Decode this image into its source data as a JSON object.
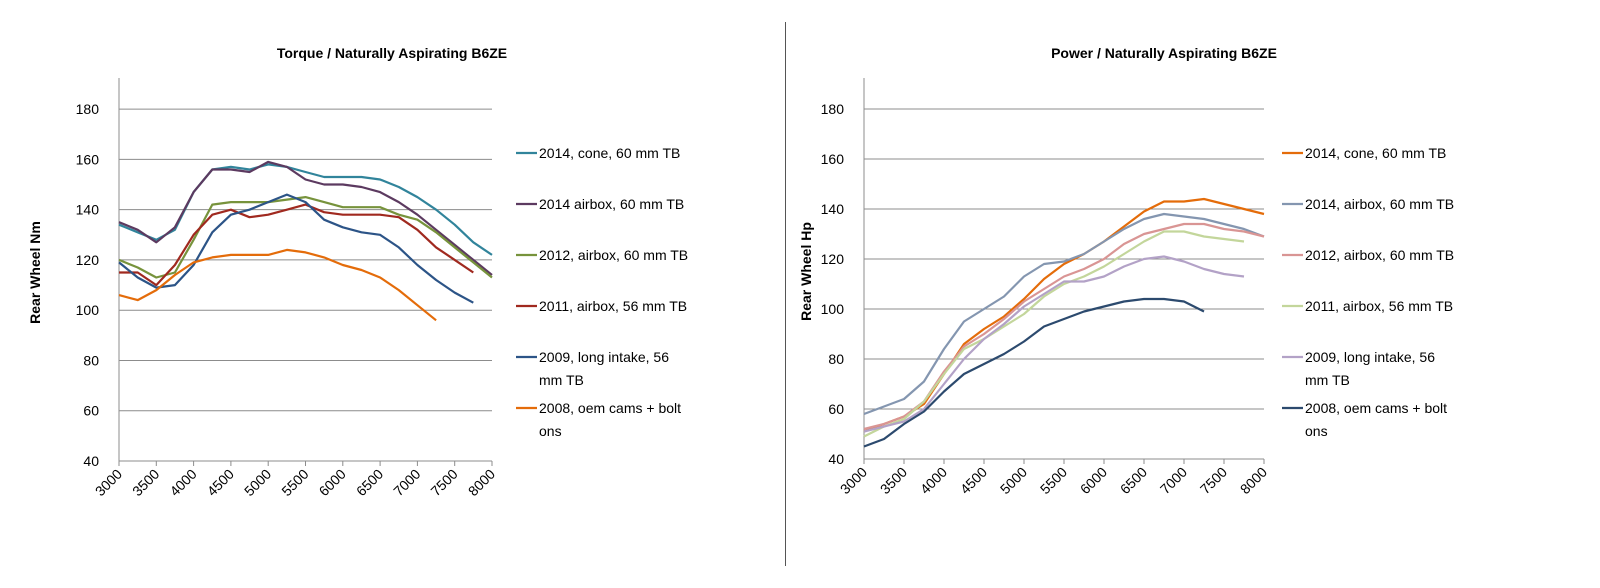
{
  "chart_data": [
    {
      "type": "line",
      "title": "Torque / Naturally Aspirating B6ZE",
      "xlabel": "",
      "ylabel": "Rear Wheel Nm",
      "ylim": [
        40,
        190
      ],
      "yticks": [
        40,
        60,
        80,
        100,
        120,
        140,
        160,
        180
      ],
      "xlim": [
        3000,
        8000
      ],
      "xticks": [
        3000,
        3500,
        4000,
        4500,
        5000,
        5500,
        6000,
        6500,
        7000,
        7500,
        8000
      ],
      "grid": true,
      "legend_position": "right",
      "series": [
        {
          "name": "2014, cone, 60 mm TB",
          "color": "#31849b",
          "x": [
            3000,
            3250,
            3500,
            3750,
            4000,
            4250,
            4500,
            4750,
            5000,
            5250,
            5500,
            5750,
            6000,
            6250,
            6500,
            6750,
            7000,
            7250,
            7500,
            7750,
            8000
          ],
          "y": [
            134,
            131,
            128,
            132,
            147,
            156,
            157,
            156,
            158,
            157,
            155,
            153,
            153,
            153,
            152,
            149,
            145,
            140,
            134,
            127,
            122
          ]
        },
        {
          "name": "2014 airbox, 60 mm TB",
          "color": "#5c3a60",
          "x": [
            3000,
            3250,
            3500,
            3750,
            4000,
            4250,
            4500,
            4750,
            5000,
            5250,
            5500,
            5750,
            6000,
            6250,
            6500,
            6750,
            7000,
            7250,
            7500,
            7750,
            8000
          ],
          "y": [
            135,
            132,
            127,
            133,
            147,
            156,
            156,
            155,
            159,
            157,
            152,
            150,
            150,
            149,
            147,
            143,
            138,
            132,
            126,
            120,
            114
          ]
        },
        {
          "name": "2012, airbox, 60 mm TB",
          "color": "#77933c",
          "x": [
            3000,
            3250,
            3500,
            3750,
            4000,
            4250,
            4500,
            4750,
            5000,
            5250,
            5500,
            5750,
            6000,
            6250,
            6500,
            6750,
            7000,
            7250,
            7500,
            7750,
            8000
          ],
          "y": [
            120,
            117,
            113,
            115,
            128,
            142,
            143,
            143,
            143,
            144,
            145,
            143,
            141,
            141,
            141,
            138,
            136,
            131,
            125,
            119,
            113
          ]
        },
        {
          "name": "2011, airbox, 56 mm TB",
          "color": "#a0291f",
          "x": [
            3000,
            3250,
            3500,
            3750,
            4000,
            4250,
            4500,
            4750,
            5000,
            5250,
            5500,
            5750,
            6000,
            6250,
            6500,
            6750,
            7000,
            7250,
            7500,
            7750
          ],
          "y": [
            115,
            115,
            110,
            118,
            130,
            138,
            140,
            137,
            138,
            140,
            142,
            139,
            138,
            138,
            138,
            137,
            132,
            125,
            120,
            115
          ]
        },
        {
          "name": "2009, long intake, 56 mm TB",
          "color": "#2c5487",
          "x": [
            3000,
            3250,
            3500,
            3750,
            4000,
            4250,
            4500,
            4750,
            5000,
            5250,
            5500,
            5750,
            6000,
            6250,
            6500,
            6750,
            7000,
            7250,
            7500,
            7750
          ],
          "y": [
            119,
            113,
            109,
            110,
            118,
            131,
            138,
            140,
            143,
            146,
            143,
            136,
            133,
            131,
            130,
            125,
            118,
            112,
            107,
            103
          ]
        },
        {
          "name": "2008, oem cams + bolt ons",
          "color": "#e46c0a",
          "x": [
            3000,
            3250,
            3500,
            3750,
            4000,
            4250,
            4500,
            4750,
            5000,
            5250,
            5500,
            5750,
            6000,
            6250,
            6500,
            6750,
            7000,
            7250
          ],
          "y": [
            106,
            104,
            108,
            114,
            119,
            121,
            122,
            122,
            122,
            124,
            123,
            121,
            118,
            116,
            113,
            108,
            102,
            96
          ]
        }
      ]
    },
    {
      "type": "line",
      "title": "Power / Naturally Aspirating B6ZE",
      "xlabel": "",
      "ylabel": "Rear Wheel Hp",
      "ylim": [
        40,
        190
      ],
      "yticks": [
        40,
        60,
        80,
        100,
        120,
        140,
        160,
        180
      ],
      "xlim": [
        3000,
        8000
      ],
      "xticks": [
        3000,
        3500,
        4000,
        4500,
        5000,
        5500,
        6000,
        6500,
        7000,
        7500,
        8000
      ],
      "grid": true,
      "legend_position": "right",
      "series": [
        {
          "name": "2014, cone, 60 mm TB",
          "color": "#e46c0a",
          "x": [
            3000,
            3250,
            3500,
            3750,
            4000,
            4250,
            4500,
            4750,
            5000,
            5250,
            5500,
            5750,
            6000,
            6250,
            6500,
            6750,
            7000,
            7250,
            7500,
            7750,
            8000
          ],
          "y": [
            51,
            54,
            57,
            62,
            74,
            86,
            92,
            97,
            104,
            112,
            118,
            122,
            127,
            133,
            139,
            143,
            143,
            144,
            142,
            140,
            138
          ]
        },
        {
          "name": "2014, airbox, 60 mm TB",
          "color": "#8496b0",
          "x": [
            3000,
            3250,
            3500,
            3750,
            4000,
            4250,
            4500,
            4750,
            5000,
            5250,
            5500,
            5750,
            6000,
            6250,
            6500,
            6750,
            7000,
            7250,
            7500,
            7750,
            8000
          ],
          "y": [
            58,
            61,
            64,
            71,
            84,
            95,
            100,
            105,
            113,
            118,
            119,
            122,
            127,
            132,
            136,
            138,
            137,
            136,
            134,
            132,
            129
          ]
        },
        {
          "name": "2012, airbox, 60 mm TB",
          "color": "#d99594",
          "x": [
            3000,
            3250,
            3500,
            3750,
            4000,
            4250,
            4500,
            4750,
            5000,
            5250,
            5500,
            5750,
            6000,
            6250,
            6500,
            6750,
            7000,
            7250,
            7500,
            7750,
            8000
          ],
          "y": [
            52,
            54,
            57,
            63,
            75,
            85,
            90,
            96,
            103,
            108,
            113,
            116,
            120,
            126,
            130,
            132,
            134,
            134,
            132,
            131,
            129
          ]
        },
        {
          "name": "2011, airbox, 56 mm TB",
          "color": "#c3d69b",
          "x": [
            3000,
            3250,
            3500,
            3750,
            4000,
            4250,
            4500,
            4750,
            5000,
            5250,
            5500,
            5750,
            6000,
            6250,
            6500,
            6750,
            7000,
            7250,
            7500,
            7750
          ],
          "y": [
            49,
            53,
            56,
            63,
            74,
            84,
            88,
            93,
            98,
            105,
            110,
            113,
            117,
            122,
            127,
            131,
            131,
            129,
            128,
            127
          ]
        },
        {
          "name": "2009, long intake, 56 mm TB",
          "color": "#b3a2c7",
          "x": [
            3000,
            3250,
            3500,
            3750,
            4000,
            4250,
            4500,
            4750,
            5000,
            5250,
            5500,
            5750,
            6000,
            6250,
            6500,
            6750,
            7000,
            7250,
            7500,
            7750
          ],
          "y": [
            51,
            53,
            55,
            60,
            70,
            80,
            88,
            94,
            101,
            106,
            111,
            111,
            113,
            117,
            120,
            121,
            119,
            116,
            114,
            113
          ]
        },
        {
          "name": "2008, oem cams + bolt ons",
          "color": "#2c4a6e",
          "x": [
            3000,
            3250,
            3500,
            3750,
            4000,
            4250,
            4500,
            4750,
            5000,
            5250,
            5500,
            5750,
            6000,
            6250,
            6500,
            6750,
            7000,
            7250
          ],
          "y": [
            45,
            48,
            54,
            59,
            67,
            74,
            78,
            82,
            87,
            93,
            96,
            99,
            101,
            103,
            104,
            104,
            103,
            99
          ]
        }
      ]
    }
  ]
}
